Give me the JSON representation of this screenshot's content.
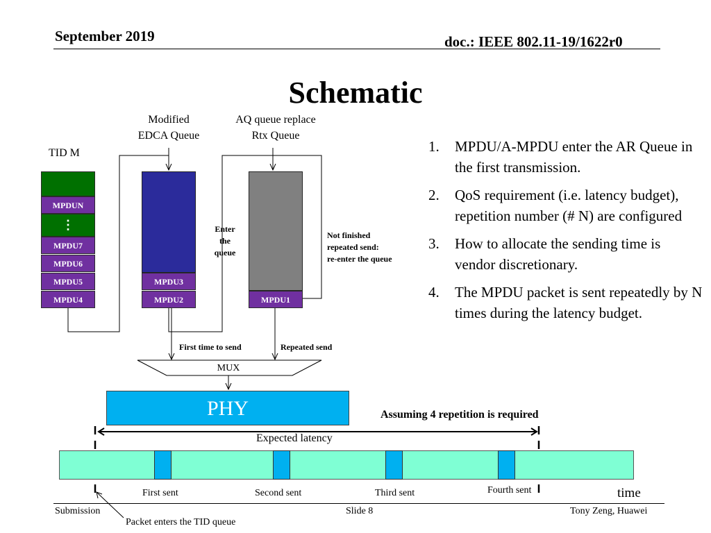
{
  "header": {
    "date": "September 2019",
    "doc": "doc.: IEEE 802.11-19/1622r0"
  },
  "title": "Schematic",
  "labels": {
    "modified_edca_line1": "Modified",
    "modified_edca_line2": "EDCA Queue",
    "aq_line1": "AQ queue replace",
    "aq_line2": "Rtx Queue",
    "tid": "TID M",
    "enter_line1": "Enter",
    "enter_line2": "the",
    "enter_line3": "queue",
    "not_finished_line1": "Not finished",
    "not_finished_line2": "repeated send:",
    "not_finished_line3": "re-enter the queue",
    "first_time": "First time to send",
    "repeated_send": "Repeated send",
    "mux": "MUX",
    "phy": "PHY",
    "assuming": "Assuming 4 repetition is required",
    "expected_latency": "Expected latency",
    "time": "time",
    "packet_enters": "Packet enters the TID queue"
  },
  "tid_queue": {
    "mpdun": "MPDUN",
    "dots": "⋮",
    "mpdu7": "MPDU7",
    "mpdu6": "MPDU6",
    "mpdu5": "MPDU5",
    "mpdu4": "MPDU4"
  },
  "edca_queue": {
    "mpdu3": "MPDU3",
    "mpdu2": "MPDU2"
  },
  "aq_queue": {
    "mpdu1": "MPDU1"
  },
  "sent_labels": [
    "First sent",
    "Second sent",
    "Third sent",
    "Fourth sent"
  ],
  "list": [
    {
      "num": "1.",
      "text": "MPDU/A-MPDU enter the AR Queue in the first transmission."
    },
    {
      "num": "2.",
      "text": "QoS requirement (i.e. latency budget), repetition number  (# N) are configured"
    },
    {
      "num": "3.",
      "text": "How to allocate the sending time is vendor discretionary."
    },
    {
      "num": "4.",
      "text": "The MPDU packet is sent repeatedly by N times during the latency budget."
    }
  ],
  "footer": {
    "left": "Submission",
    "center": "Slide 8",
    "right": "Tony Zeng, Huawei"
  },
  "colors": {
    "edca_queue": "#2b2b9b",
    "aq_queue": "#808080",
    "mpdu_cell": "#7030a0",
    "tid_green": "#007000",
    "phy": "#00b0f0",
    "timeline": "#7fffd4"
  }
}
